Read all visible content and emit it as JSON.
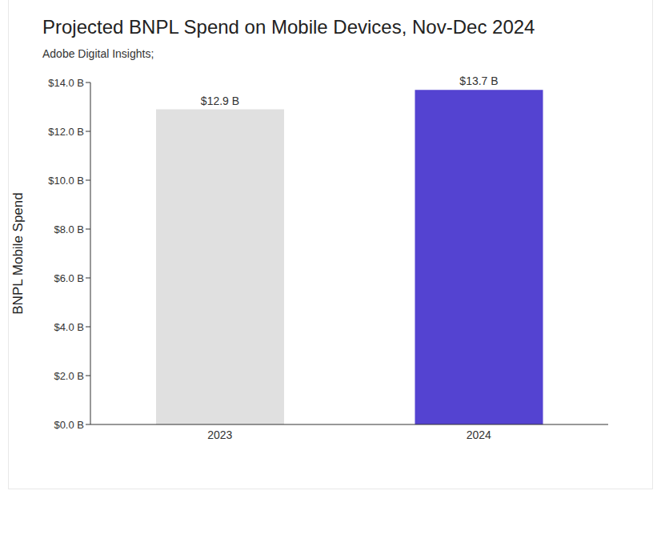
{
  "chart_data": {
    "type": "bar",
    "title": "Projected BNPL Spend on Mobile Devices, Nov-Dec 2024",
    "subtitle": "Adobe Digital Insights;",
    "y_label": "BNPL Mobile Spend",
    "categories": [
      "2023",
      "2024"
    ],
    "values": [
      12.9,
      13.7
    ],
    "value_labels": [
      "$12.9 B",
      "$13.7 B"
    ],
    "colors": [
      "#e0e0e0",
      "#5443d1"
    ],
    "ylim": [
      0,
      14
    ],
    "yticks": [
      {
        "value": 0,
        "label": "$0.0 B"
      },
      {
        "value": 2,
        "label": "$2.0 B"
      },
      {
        "value": 4,
        "label": "$4.0 B"
      },
      {
        "value": 6,
        "label": "$6.0 B"
      },
      {
        "value": 8,
        "label": "$8.0 B"
      },
      {
        "value": 10,
        "label": "$10.0 B"
      },
      {
        "value": 12,
        "label": "$12.0 B"
      },
      {
        "value": 14,
        "label": "$14.0 B"
      }
    ],
    "grid": false,
    "data_labels": true
  }
}
